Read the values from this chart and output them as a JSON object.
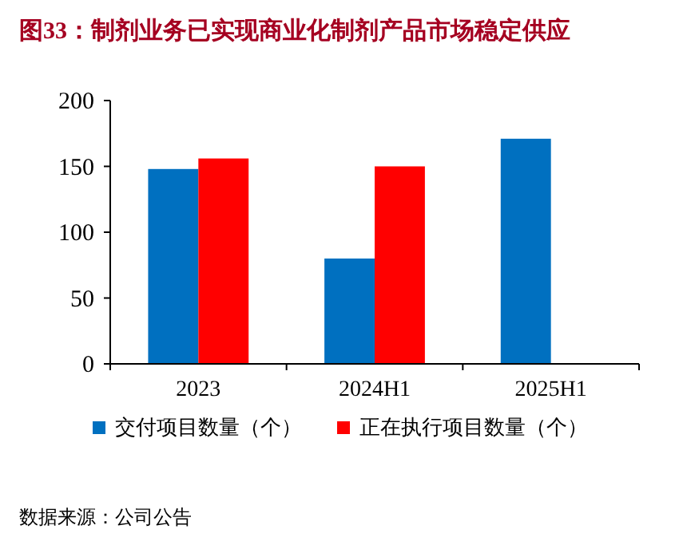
{
  "chart_data": {
    "type": "bar",
    "title": "图33：制剂业务已实现商业化制剂产品市场稳定供应",
    "categories": [
      "2023",
      "2024H1",
      "2025H1"
    ],
    "series": [
      {
        "name": "交付项目数量（个）",
        "color": "#0070c0",
        "values": [
          148,
          80,
          171
        ]
      },
      {
        "name": "正在执行项目数量（个）",
        "color": "#ff0000",
        "values": [
          156,
          150,
          null
        ]
      }
    ],
    "ylim": [
      0,
      200
    ],
    "yticks": [
      0,
      50,
      100,
      150,
      200
    ],
    "legend": "bottom",
    "annotations": [
      "数据来源：公司公告"
    ]
  }
}
